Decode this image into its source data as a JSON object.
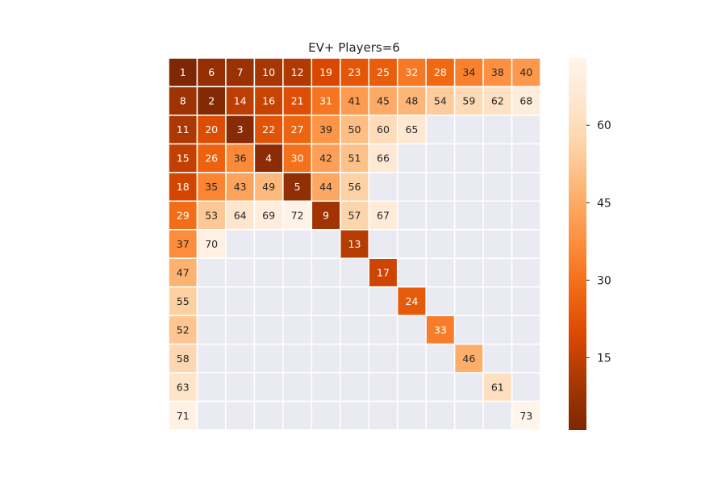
{
  "chart_data": {
    "type": "heatmap",
    "title": "EV+ Players=6",
    "colormap": "Oranges_r",
    "vmin": 1,
    "vmax": 73,
    "missing_color": "#eaeaf2",
    "grid_line_color": "#ffffff",
    "n_rows": 13,
    "n_cols": 13,
    "rows": [
      [
        1,
        6,
        7,
        10,
        12,
        19,
        23,
        25,
        32,
        28,
        34,
        38,
        40
      ],
      [
        8,
        2,
        14,
        16,
        21,
        31,
        41,
        45,
        48,
        54,
        59,
        62,
        68
      ],
      [
        11,
        20,
        3,
        22,
        27,
        39,
        50,
        60,
        65,
        null,
        null,
        null,
        null
      ],
      [
        15,
        26,
        36,
        4,
        30,
        42,
        51,
        66,
        null,
        null,
        null,
        null,
        null
      ],
      [
        18,
        35,
        43,
        49,
        5,
        44,
        56,
        null,
        null,
        null,
        null,
        null,
        null
      ],
      [
        29,
        53,
        64,
        69,
        72,
        9,
        57,
        67,
        null,
        null,
        null,
        null,
        null
      ],
      [
        37,
        70,
        null,
        null,
        null,
        null,
        13,
        null,
        null,
        null,
        null,
        null,
        null
      ],
      [
        47,
        null,
        null,
        null,
        null,
        null,
        null,
        17,
        null,
        null,
        null,
        null,
        null
      ],
      [
        55,
        null,
        null,
        null,
        null,
        null,
        null,
        null,
        24,
        null,
        null,
        null,
        null
      ],
      [
        52,
        null,
        null,
        null,
        null,
        null,
        null,
        null,
        null,
        33,
        null,
        null,
        null
      ],
      [
        58,
        null,
        null,
        null,
        null,
        null,
        null,
        null,
        null,
        null,
        46,
        null,
        null
      ],
      [
        63,
        null,
        null,
        null,
        null,
        null,
        null,
        null,
        null,
        null,
        null,
        61,
        null
      ],
      [
        71,
        null,
        null,
        null,
        null,
        null,
        null,
        null,
        null,
        null,
        null,
        null,
        73
      ]
    ],
    "colorbar": {
      "ticks": [
        15,
        30,
        45,
        60
      ],
      "tick_labels": [
        "15",
        "30",
        "45",
        "60"
      ]
    },
    "xlabel": "",
    "ylabel": "",
    "grid": false
  }
}
